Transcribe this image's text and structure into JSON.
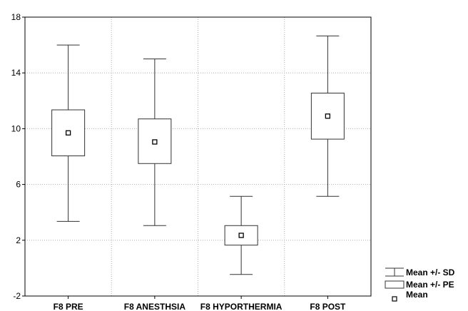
{
  "chart_data": {
    "type": "box",
    "categories": [
      "F8 PRE",
      "F8 ANESTHSIA",
      "F8 HYPORTHERMIA",
      "F8 POST"
    ],
    "series": [
      {
        "mean": 9.7,
        "pe_low": 8.05,
        "pe_high": 11.35,
        "sd_low": 3.35,
        "sd_high": 16.0
      },
      {
        "mean": 9.05,
        "pe_low": 7.5,
        "pe_high": 10.7,
        "sd_low": 3.05,
        "sd_high": 15.0
      },
      {
        "mean": 2.35,
        "pe_low": 1.65,
        "pe_high": 3.05,
        "sd_low": -0.45,
        "sd_high": 5.15
      },
      {
        "mean": 10.9,
        "pe_low": 9.25,
        "pe_high": 12.55,
        "sd_low": 5.15,
        "sd_high": 16.65
      }
    ],
    "ylim": [
      -2,
      18
    ],
    "yticks": [
      "-2",
      "2",
      "6",
      "10",
      "14",
      "18"
    ],
    "grid": true,
    "legend": {
      "placement": "bottom-right",
      "items": [
        "Mean +/- SD",
        "Mean +/- PE",
        "Mean"
      ]
    },
    "title": "",
    "xlabel": "",
    "ylabel": ""
  }
}
